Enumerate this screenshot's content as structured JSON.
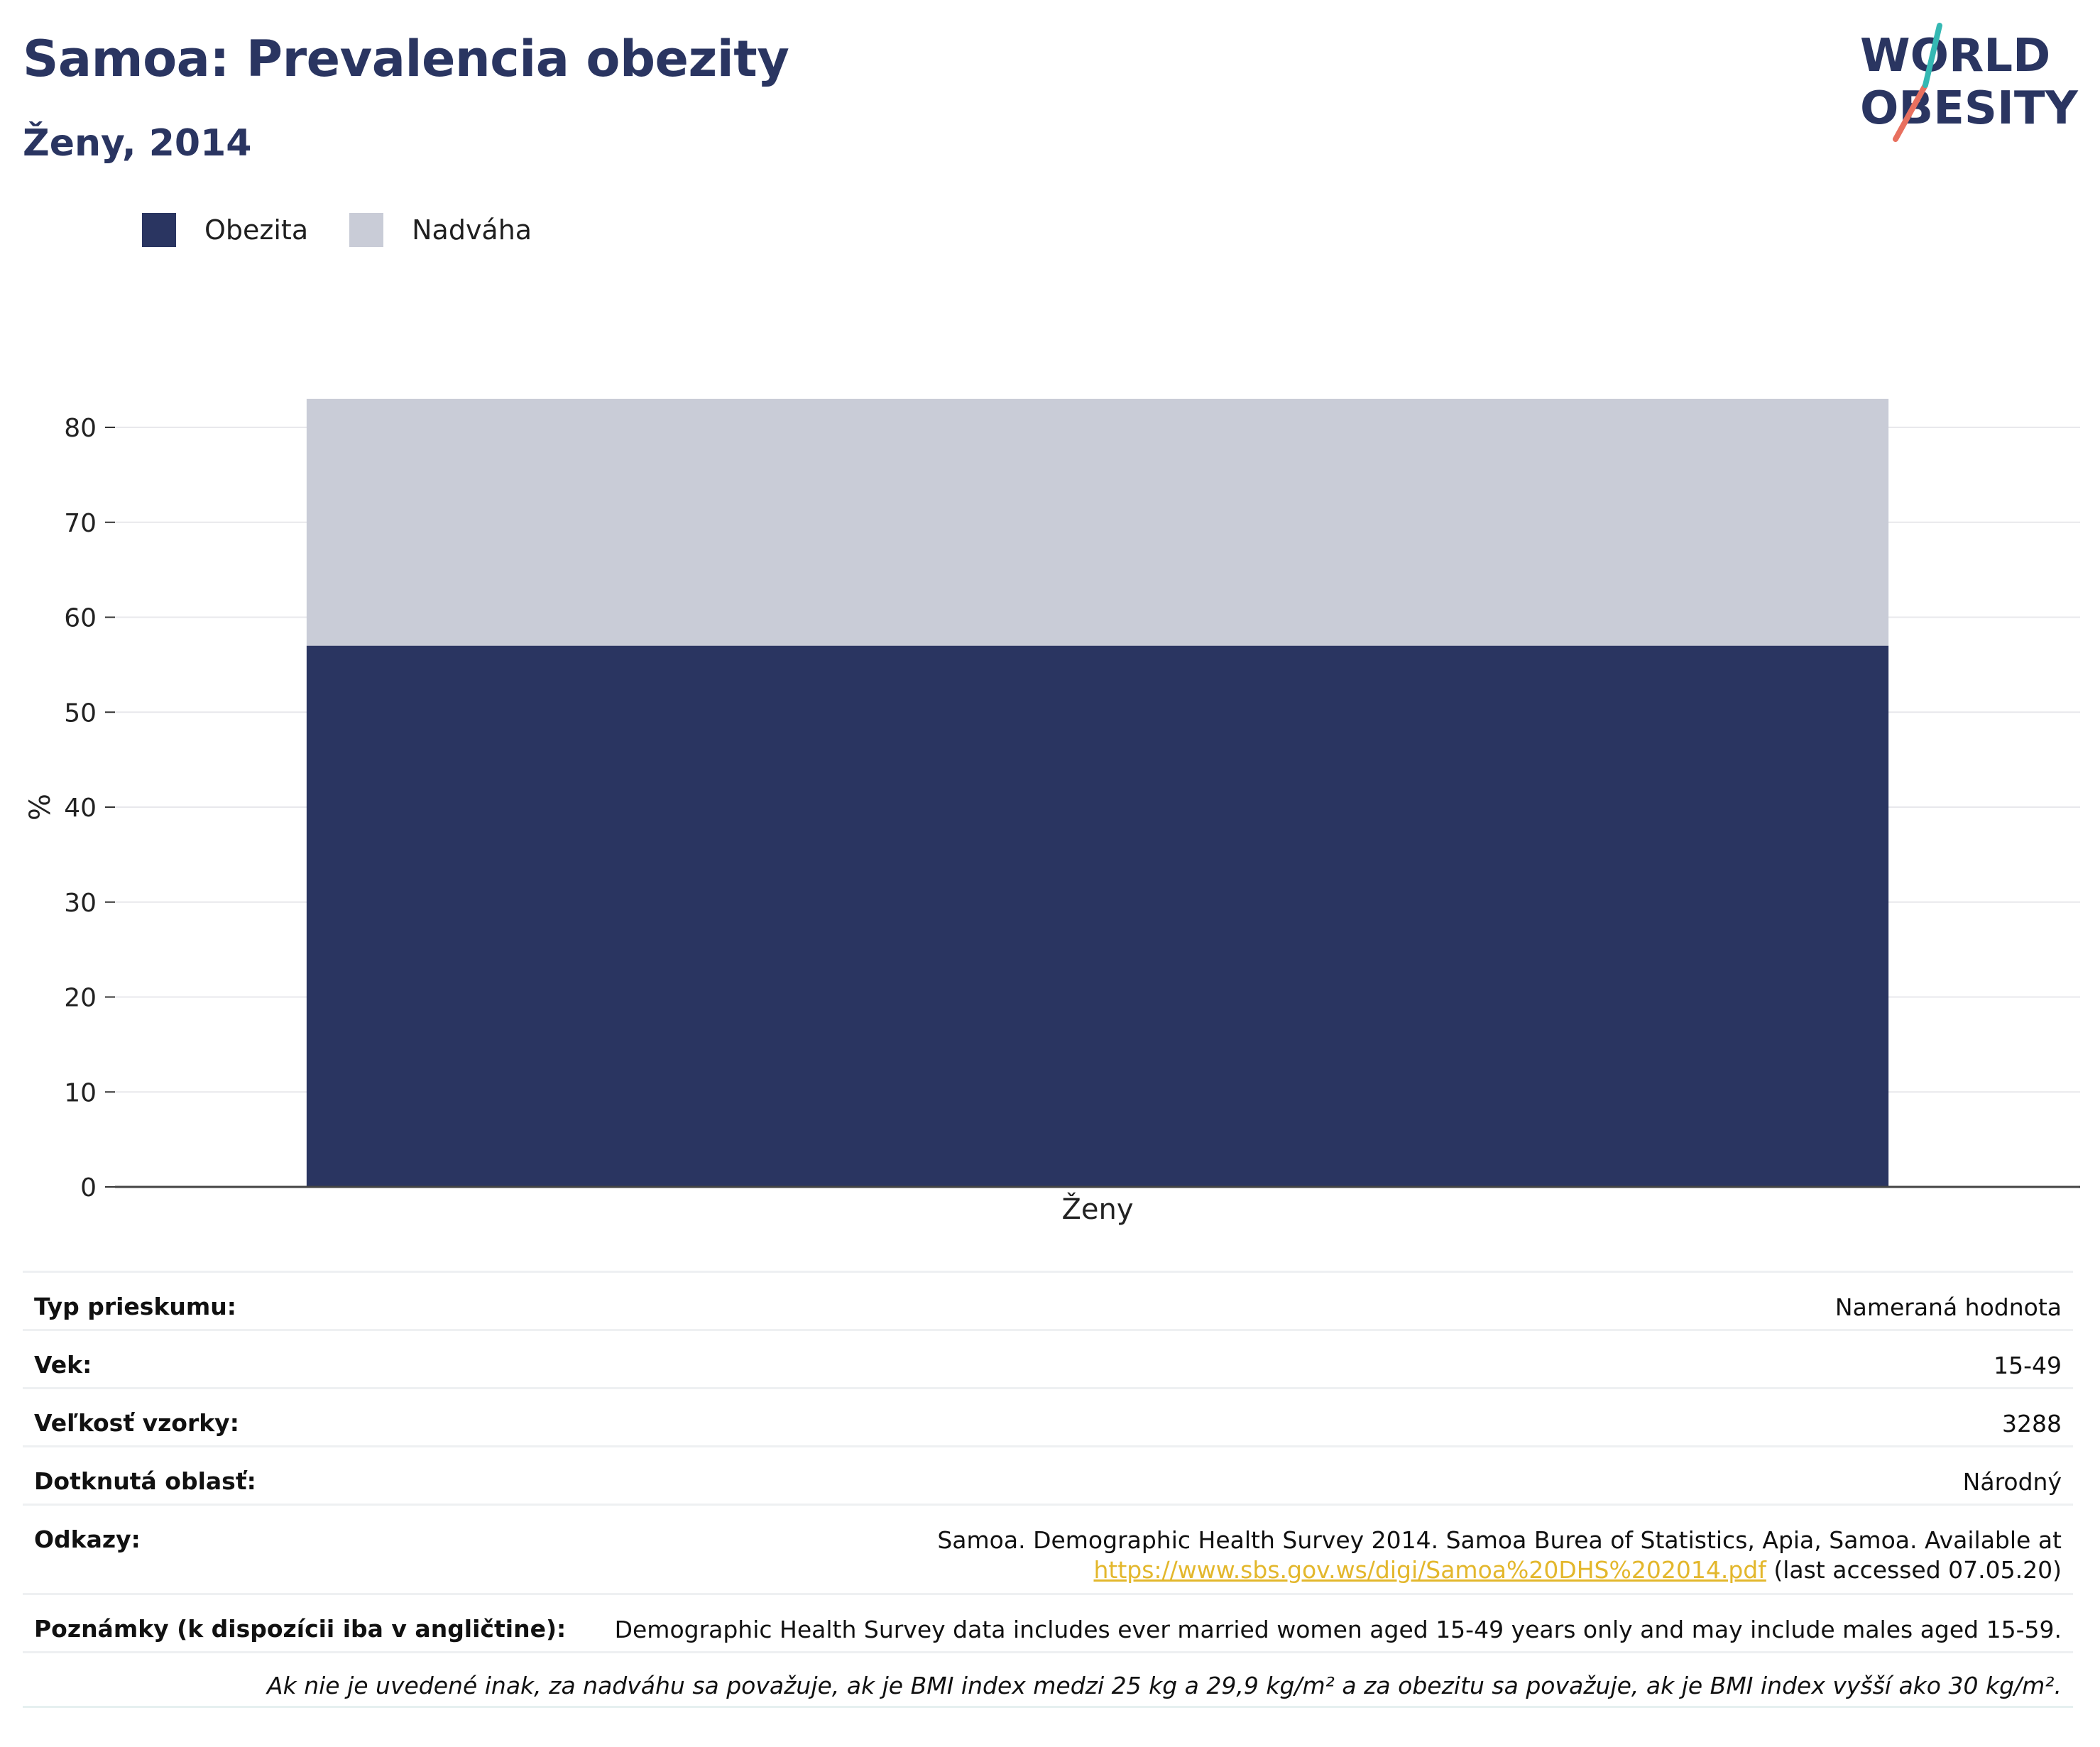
{
  "title": "Samoa: Prevalencia obezity",
  "subtitle": "Ženy, 2014",
  "logo": {
    "line1": "WORLD",
    "line2": "OBESITY"
  },
  "colors": {
    "obezita": "#2a3561",
    "nadvaha": "#c9ccd7",
    "title": "#2a3561",
    "link": "#e3b72c"
  },
  "chart_data": {
    "type": "bar",
    "stacked": true,
    "categories": [
      "Ženy"
    ],
    "series": [
      {
        "name": "Obezita",
        "values": [
          57
        ],
        "color": "#2a3561"
      },
      {
        "name": "Nadváha",
        "values": [
          26
        ],
        "color": "#c9ccd7"
      }
    ],
    "ylabel": "%",
    "xlabel": "",
    "ylim": [
      0,
      85
    ],
    "yticks": [
      0,
      10,
      20,
      30,
      40,
      50,
      60,
      70,
      80
    ],
    "grid": true,
    "legend_position": "top-left"
  },
  "info": {
    "survey_type": {
      "label": "Typ prieskumu:",
      "value": "Nameraná hodnota"
    },
    "age": {
      "label": "Vek:",
      "value": "15-49"
    },
    "sample_size": {
      "label": "Veľkosť vzorky:",
      "value": "3288"
    },
    "area": {
      "label": "Dotknutá oblasť:",
      "value": "Národný"
    },
    "references": {
      "label": "Odkazy:",
      "text": "Samoa. Demographic Health Survey 2014. Samoa Burea of Statistics, Apia, Samoa. Available at",
      "link": "https://www.sbs.gov.ws/digi/Samoa%20DHS%202014.pdf",
      "suffix": " (last accessed 07.05.20)"
    },
    "notes": {
      "label": "Poznámky (k dispozícii iba v angličtine):",
      "value": "Demographic Health Survey data includes ever married women aged 15-49 years only and may include males aged 15-59."
    },
    "footnote": "Ak nie je uvedené inak, za nadváhu sa považuje, ak je BMI index medzi 25 kg a 29,9 kg/m² a za obezitu sa považuje, ak je BMI index vyšší ako 30 kg/m²."
  }
}
